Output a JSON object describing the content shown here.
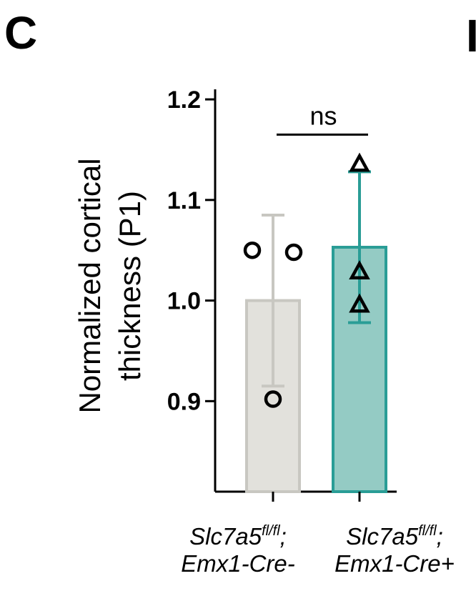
{
  "panel_label": "C",
  "panel_label_next": "I",
  "chart_data": {
    "type": "bar",
    "ylabel_line1": "Normalized cortical",
    "ylabel_line2": "thickness (P1)",
    "ylim": [
      0.81,
      1.21
    ],
    "yticks": [
      {
        "value": 0.9,
        "label": "0.9"
      },
      {
        "value": 1.0,
        "label": "1.0"
      },
      {
        "value": 1.1,
        "label": "1.1"
      },
      {
        "value": 1.2,
        "label": "1.2"
      }
    ],
    "categories": [
      {
        "line1_main": "Slc7a5",
        "line1_sup": "fl/fl",
        "line1_end": ";",
        "line2": "Emx1-Cre-"
      },
      {
        "line1_main": "Slc7a5",
        "line1_sup": "fl/fl",
        "line1_end": ";",
        "line2": "Emx1-Cre+"
      }
    ],
    "series": [
      {
        "mean": 1.0,
        "sd": 0.085,
        "points": [
          1.05,
          1.048,
          0.902
        ],
        "marker": "circle",
        "fill": "#e2e1dc",
        "stroke": "#c8c7c1",
        "errcolor": "#c8c7c1"
      },
      {
        "mean": 1.053,
        "sd": 0.075,
        "points": [
          1.135,
          1.028,
          0.995
        ],
        "marker": "triangle",
        "fill": "#94cbc4",
        "stroke": "#2a9d96",
        "errcolor": "#2a9d96"
      }
    ],
    "significance": {
      "label": "ns",
      "y": 1.165
    }
  }
}
